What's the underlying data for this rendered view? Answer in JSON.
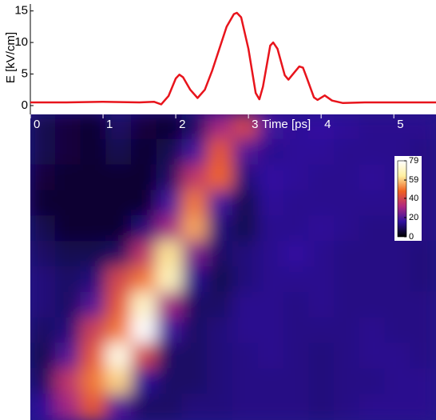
{
  "chart_data": [
    {
      "type": "line",
      "ylabel": "E [kV/cm]",
      "xlabel": "Time [ps]",
      "x": [
        0,
        0.5,
        1.0,
        1.5,
        1.7,
        1.8,
        1.9,
        2.0,
        2.05,
        2.1,
        2.2,
        2.3,
        2.4,
        2.5,
        2.6,
        2.7,
        2.8,
        2.84,
        2.9,
        3.0,
        3.1,
        3.15,
        3.2,
        3.3,
        3.34,
        3.4,
        3.5,
        3.55,
        3.6,
        3.7,
        3.75,
        3.8,
        3.9,
        3.95,
        4.05,
        4.15,
        4.3,
        4.6,
        5.0,
        5.3,
        5.58
      ],
      "y": [
        0.5,
        0.5,
        0.6,
        0.5,
        0.6,
        0.2,
        1.5,
        4.3,
        4.9,
        4.5,
        2.5,
        1.2,
        2.5,
        5.5,
        9.0,
        12.5,
        14.5,
        14.7,
        14.0,
        9.0,
        2.0,
        1.0,
        3.0,
        9.5,
        10.0,
        9.0,
        4.8,
        4.1,
        4.8,
        6.2,
        6.0,
        4.5,
        1.3,
        0.9,
        1.6,
        0.8,
        0.4,
        0.5,
        0.5,
        0.5,
        0.5
      ],
      "color": "#e8141c",
      "xlim": [
        0,
        5.58
      ],
      "ylim": [
        -1.4,
        16.1
      ],
      "xticks": [
        0,
        1,
        2,
        3,
        4,
        5
      ],
      "yticks": [
        0,
        5,
        10,
        15
      ]
    },
    {
      "type": "heatmap",
      "z": [
        [
          8,
          6,
          5,
          10,
          6,
          5,
          10,
          30,
          40,
          18,
          15,
          16,
          15,
          14,
          14,
          14
        ],
        [
          8,
          6,
          5,
          8,
          5,
          8,
          18,
          45,
          20,
          14,
          15,
          15,
          14,
          14,
          14,
          13
        ],
        [
          6,
          5,
          5,
          5,
          5,
          10,
          35,
          48,
          12,
          16,
          15,
          14,
          14,
          15,
          14,
          13
        ],
        [
          5,
          5,
          5,
          5,
          5,
          18,
          50,
          18,
          8,
          15,
          14,
          14,
          14,
          14,
          14,
          13
        ],
        [
          8,
          5,
          5,
          5,
          12,
          30,
          55,
          12,
          8,
          14,
          14,
          15,
          14,
          13,
          13,
          13
        ],
        [
          10,
          8,
          8,
          10,
          35,
          62,
          25,
          10,
          12,
          14,
          16,
          14,
          13,
          13,
          13,
          12
        ],
        [
          12,
          10,
          12,
          40,
          50,
          68,
          14,
          8,
          12,
          14,
          14,
          14,
          13,
          13,
          13,
          12
        ],
        [
          12,
          10,
          20,
          45,
          70,
          30,
          10,
          10,
          14,
          14,
          13,
          14,
          13,
          13,
          13,
          13
        ],
        [
          10,
          12,
          38,
          50,
          79,
          18,
          10,
          12,
          14,
          14,
          13,
          13,
          13,
          14,
          13,
          13
        ],
        [
          8,
          20,
          45,
          75,
          40,
          10,
          10,
          12,
          13,
          14,
          13,
          12,
          13,
          14,
          14,
          13
        ],
        [
          10,
          35,
          50,
          60,
          15,
          10,
          10,
          12,
          13,
          13,
          13,
          12,
          13,
          13,
          14,
          14
        ],
        [
          15,
          30,
          45,
          20,
          10,
          10,
          12,
          12,
          13,
          13,
          13,
          12,
          13,
          14,
          14,
          14
        ]
      ],
      "colormap": [
        "#000000",
        "#3010a0",
        "#b02880",
        "#f06020",
        "#fff0a0",
        "#ffffff"
      ],
      "zlim": [
        0,
        79
      ],
      "zticks": [
        0,
        20,
        40,
        59,
        79
      ]
    }
  ]
}
